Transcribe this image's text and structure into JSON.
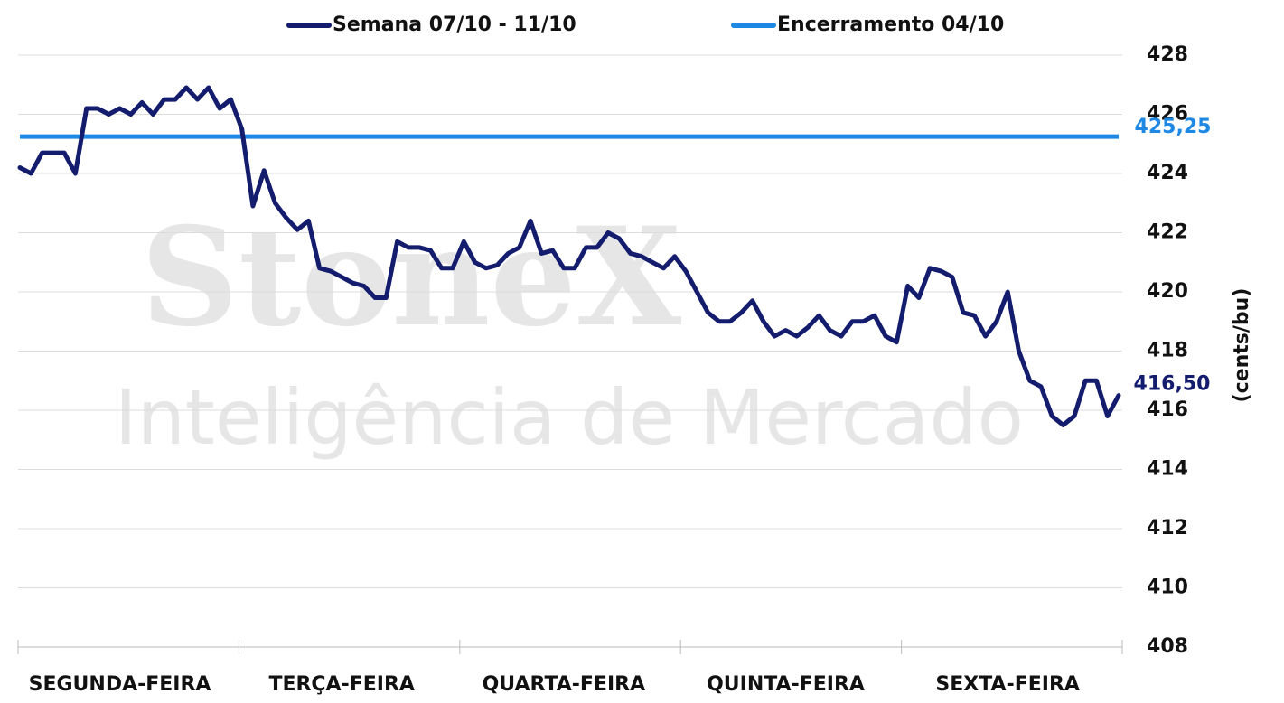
{
  "chart_data": {
    "type": "line",
    "watermark": [
      "StoneX",
      "Inteligência de Mercado"
    ],
    "y_label": "(cents/bu)",
    "categories": [
      null,
      null,
      null,
      null,
      null,
      null,
      null,
      null,
      null,
      "SEGUNDA-FEIRA",
      null,
      null,
      null,
      null,
      null,
      null,
      null,
      null,
      null,
      null,
      null,
      null,
      null,
      null,
      null,
      null,
      null,
      null,
      null,
      "TERÇA-FEIRA",
      null,
      null,
      null,
      null,
      null,
      null,
      null,
      null,
      null,
      null,
      null,
      null,
      null,
      null,
      null,
      null,
      null,
      null,
      null,
      "QUARTA-FEIRA",
      null,
      null,
      null,
      null,
      null,
      null,
      null,
      null,
      null,
      null,
      null,
      null,
      null,
      null,
      null,
      null,
      null,
      null,
      null,
      "QUINTA-FEIRA",
      null,
      null,
      null,
      null,
      null,
      null,
      null,
      null,
      null,
      null,
      null,
      null,
      null,
      null,
      null,
      null,
      null,
      null,
      null,
      "SEXTA-FEIRA",
      null,
      null,
      null,
      null,
      null,
      null,
      null,
      null,
      null,
      null
    ],
    "series": [
      {
        "name": "Semana 07/10 - 11/10",
        "color": "#141c6e",
        "values": [
          424.2,
          424.0,
          424.7,
          424.7,
          424.7,
          424.0,
          426.2,
          426.2,
          426.0,
          426.2,
          426.0,
          426.4,
          426.0,
          426.5,
          426.5,
          426.9,
          426.5,
          426.9,
          426.2,
          426.5,
          425.5,
          422.9,
          424.1,
          423.0,
          422.5,
          422.1,
          422.4,
          420.8,
          420.7,
          420.5,
          420.3,
          420.2,
          419.8,
          419.8,
          421.7,
          421.5,
          421.5,
          421.4,
          420.8,
          420.8,
          421.7,
          421.0,
          420.8,
          420.9,
          421.3,
          421.5,
          422.4,
          421.3,
          421.4,
          420.8,
          420.8,
          421.5,
          421.5,
          422.0,
          421.8,
          421.3,
          421.2,
          421.0,
          420.8,
          421.2,
          420.7,
          420.0,
          419.3,
          419.0,
          419.0,
          419.3,
          419.7,
          419.0,
          418.5,
          418.7,
          418.5,
          418.8,
          419.2,
          418.7,
          418.5,
          419.0,
          419.0,
          419.2,
          418.5,
          418.3,
          420.2,
          419.8,
          420.8,
          420.7,
          420.5,
          419.3,
          419.2,
          418.5,
          419.0,
          420.0,
          418.0,
          417.0,
          416.8,
          415.8,
          415.5,
          415.8,
          417.0,
          417.0,
          415.8,
          416.5
        ],
        "value_labels": [
          null,
          null,
          null,
          null,
          null,
          null,
          null,
          null,
          null,
          null,
          null,
          null,
          null,
          null,
          null,
          null,
          null,
          null,
          null,
          null,
          null,
          null,
          null,
          null,
          null,
          null,
          null,
          null,
          null,
          null,
          null,
          null,
          null,
          null,
          null,
          null,
          null,
          null,
          null,
          null,
          null,
          null,
          null,
          null,
          null,
          null,
          null,
          null,
          null,
          null,
          null,
          null,
          null,
          null,
          null,
          null,
          null,
          null,
          null,
          null,
          null,
          null,
          null,
          null,
          null,
          null,
          null,
          null,
          null,
          null,
          null,
          null,
          null,
          null,
          null,
          null,
          null,
          null,
          null,
          null,
          null,
          null,
          null,
          null,
          null,
          null,
          null,
          null,
          null,
          null,
          null,
          null,
          null,
          null,
          null,
          null,
          null,
          null,
          null,
          "416,50"
        ]
      }
    ],
    "hlines": [
      {
        "name": "Encerramento 04/10",
        "color": "#1e88e5",
        "value": 425.25,
        "label": "425,25"
      }
    ],
    "ylim": [
      408,
      428
    ],
    "yticks": [
      408,
      410,
      412,
      414,
      416,
      418,
      420,
      422,
      424,
      426,
      428
    ],
    "grid": true
  }
}
